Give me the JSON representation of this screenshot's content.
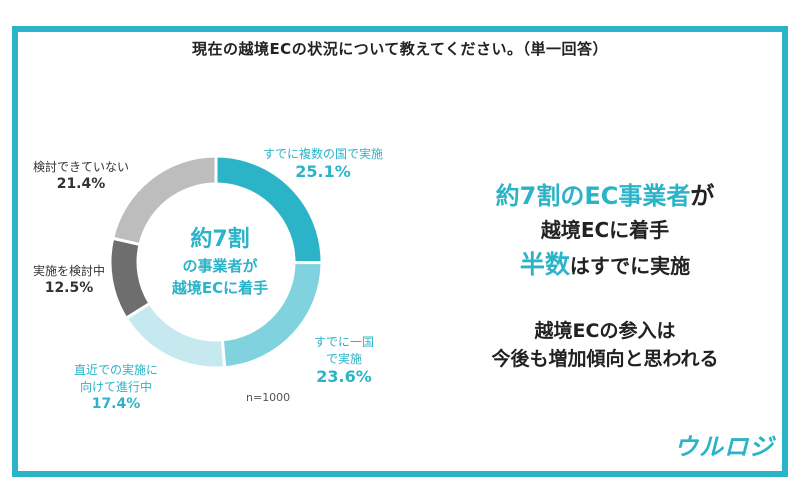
{
  "title": "現在の越境ECの状況について教えてください。（単一回答）",
  "sample_size": "n=1000",
  "center": {
    "line1": "約7割",
    "line2": "の事業者が",
    "line3": "越境ECに着手"
  },
  "labels": [
    {
      "name": "すでに複数の国で実施",
      "pct": "25.1%"
    },
    {
      "name": "すでに一国で実施",
      "name_line1": "すでに一国",
      "name_line2": "で実施",
      "pct": "23.6%"
    },
    {
      "name": "直近での実施に向けて進行中",
      "name_line1": "直近での実施に",
      "name_line2": "向けて進行中",
      "pct": "17.4%"
    },
    {
      "name": "実施を検討中",
      "pct": "12.5%"
    },
    {
      "name": "検討できていない",
      "pct": "21.4%"
    }
  ],
  "headline": {
    "l1_accent": "約7割のEC事業者",
    "l1_rest": "が",
    "l2": "越境ECに着手",
    "l3_accent": "半数",
    "l3_rest": "はすでに実施",
    "l4": "越境ECの参入は",
    "l5": "今後も増加傾向と思われる"
  },
  "logo": "ウルロジ",
  "colors": {
    "frame": "#2bb3c7",
    "accent": "#2bb3c7"
  },
  "chart_data": {
    "type": "pie",
    "title": "現在の越境ECの状況について教えてください。（単一回答）",
    "categories": [
      "すでに複数の国で実施",
      "すでに一国で実施",
      "直近での実施に向けて進行中",
      "実施を検討中",
      "検討できていない"
    ],
    "values": [
      25.1,
      23.6,
      17.4,
      12.5,
      21.4
    ],
    "colors": [
      "#2bb3c7",
      "#7fd2de",
      "#c6e9f0",
      "#6e6e6e",
      "#bdbdbd"
    ],
    "donut": true
  }
}
